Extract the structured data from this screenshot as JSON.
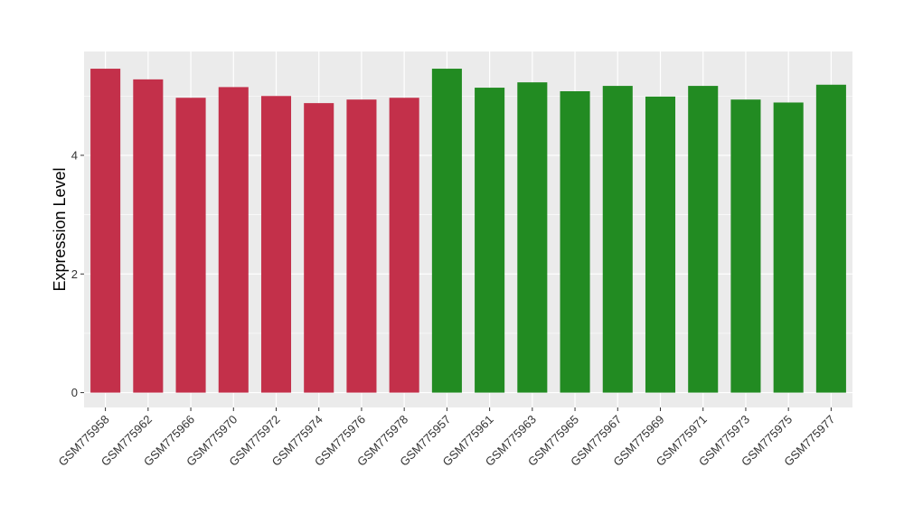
{
  "chart_data": {
    "type": "bar",
    "title": "",
    "xlabel": "",
    "ylabel": "Expression Level",
    "ylim": [
      -0.25,
      5.75
    ],
    "yticks": [
      0,
      2,
      4
    ],
    "grid": true,
    "legend": "none",
    "categories": [
      "GSM775958",
      "GSM775962",
      "GSM775966",
      "GSM775970",
      "GSM775972",
      "GSM775974",
      "GSM775976",
      "GSM775978",
      "GSM775957",
      "GSM775961",
      "GSM775963",
      "GSM775965",
      "GSM775967",
      "GSM775969",
      "GSM775971",
      "GSM775973",
      "GSM775975",
      "GSM775977"
    ],
    "values": [
      5.46,
      5.28,
      4.97,
      5.15,
      5.0,
      4.88,
      4.94,
      4.97,
      5.46,
      5.14,
      5.23,
      5.08,
      5.17,
      4.99,
      5.17,
      4.94,
      4.89,
      5.19
    ],
    "group_colors": [
      "#C3304A",
      "#C3304A",
      "#C3304A",
      "#C3304A",
      "#C3304A",
      "#C3304A",
      "#C3304A",
      "#C3304A",
      "#228B22",
      "#228B22",
      "#228B22",
      "#228B22",
      "#228B22",
      "#228B22",
      "#228B22",
      "#228B22",
      "#228B22",
      "#228B22"
    ],
    "panel_background": "#EBEBEB",
    "grid_color": "#FFFFFF"
  }
}
